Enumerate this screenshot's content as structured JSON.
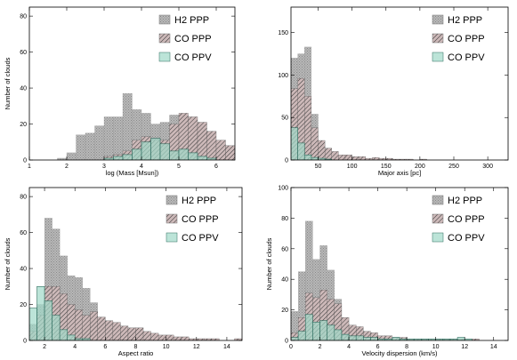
{
  "chart_data": [
    {
      "type": "bar",
      "panel": "top-left",
      "xlabel": "log (Mass [Msun])",
      "ylabel": "Number of clouds",
      "xlim": [
        1,
        6.5
      ],
      "ylim": [
        0,
        85
      ],
      "xticks": [
        1,
        2,
        3,
        4,
        5,
        6
      ],
      "yticks": [
        0,
        20,
        40,
        60,
        80
      ],
      "legend_position": "top-right",
      "bin_start": 1.75,
      "bin_width": 0.25,
      "series": [
        {
          "name": "H2 PPP",
          "color": "#b4b4b4",
          "pattern": "dots",
          "values": [
            1,
            4,
            14,
            15,
            19,
            24,
            24,
            37,
            28,
            26,
            20,
            21,
            25,
            25,
            18,
            14,
            6,
            2
          ]
        },
        {
          "name": "CO PPP",
          "color": "#d8c6c6",
          "pattern": "hatch",
          "values": [
            0,
            0,
            0,
            0,
            0,
            2,
            3,
            5,
            11,
            13,
            11,
            11,
            20,
            26,
            24,
            21,
            16,
            11,
            8,
            6,
            5,
            2
          ]
        },
        {
          "name": "CO PPV",
          "color": "#9fd8c8",
          "pattern": "none",
          "values": [
            0,
            0,
            0,
            0,
            0,
            1,
            2,
            3,
            6,
            10,
            12,
            9,
            5,
            6,
            4,
            2,
            1
          ]
        }
      ]
    },
    {
      "type": "bar",
      "panel": "top-right",
      "xlabel": "Major axis [pc]",
      "ylabel": "",
      "xlim": [
        10,
        330
      ],
      "ylim": [
        0,
        180
      ],
      "xticks": [
        50,
        100,
        150,
        200,
        250,
        300
      ],
      "yticks": [
        0,
        50,
        100,
        150
      ],
      "legend_position": "top-right",
      "bin_start": 10,
      "bin_width": 10,
      "series": [
        {
          "name": "H2 PPP",
          "color": "#b4b4b4",
          "pattern": "dots",
          "values": [
            120,
            125,
            133,
            54,
            17,
            4,
            2,
            1,
            1,
            0,
            0,
            1,
            0,
            1
          ]
        },
        {
          "name": "CO PPP",
          "color": "#d8c6c6",
          "pattern": "hatch",
          "values": [
            84,
            96,
            75,
            38,
            23,
            14,
            10,
            6,
            6,
            4,
            4,
            2,
            3,
            2,
            2,
            1,
            1,
            1,
            0,
            1
          ]
        },
        {
          "name": "CO PPV",
          "color": "#9fd8c8",
          "pattern": "none",
          "values": [
            38,
            20,
            6,
            3,
            2,
            1
          ]
        }
      ]
    },
    {
      "type": "bar",
      "panel": "bottom-left",
      "xlabel": "Aspect ratio",
      "ylabel": "Number of clouds",
      "xlim": [
        1,
        15
      ],
      "ylim": [
        0,
        85
      ],
      "xticks": [
        2,
        4,
        6,
        8,
        10,
        12,
        14
      ],
      "yticks": [
        0,
        20,
        40,
        60,
        80
      ],
      "legend_position": "top-right",
      "bin_start": 1,
      "bin_width": 0.5,
      "series": [
        {
          "name": "H2 PPP",
          "color": "#b4b4b4",
          "pattern": "dots",
          "values": [
            9,
            20,
            68,
            62,
            47,
            36,
            35,
            29,
            21,
            12,
            7,
            5,
            3,
            2,
            1,
            1,
            0,
            0,
            0,
            1
          ]
        },
        {
          "name": "CO PPP",
          "color": "#d8c6c6",
          "pattern": "hatch",
          "values": [
            5,
            14,
            30,
            30,
            26,
            20,
            17,
            14,
            16,
            13,
            11,
            10,
            8,
            7,
            7,
            5,
            4,
            3,
            3,
            2,
            2,
            1,
            1,
            1,
            1,
            0,
            0,
            1
          ]
        },
        {
          "name": "CO PPV",
          "color": "#9fd8c8",
          "pattern": "none",
          "values": [
            18,
            30,
            22,
            14,
            6,
            3,
            1,
            1
          ]
        }
      ]
    },
    {
      "type": "bar",
      "panel": "bottom-right",
      "xlabel": "Velocity dispersion (km/s)",
      "ylabel": "Number of clouds",
      "xlim": [
        0,
        15
      ],
      "ylim": [
        0,
        100
      ],
      "xticks": [
        0,
        2,
        4,
        6,
        8,
        10,
        12,
        14
      ],
      "yticks": [
        0,
        20,
        40,
        60,
        80,
        100
      ],
      "legend_position": "top-right",
      "bin_start": 0,
      "bin_width": 0.5,
      "series": [
        {
          "name": "H2 PPP",
          "color": "#b4b4b4",
          "pattern": "dots",
          "values": [
            19,
            45,
            78,
            53,
            62,
            46,
            27,
            11,
            4,
            2,
            1,
            1
          ]
        },
        {
          "name": "CO PPP",
          "color": "#d8c6c6",
          "pattern": "hatch",
          "values": [
            5,
            15,
            31,
            28,
            33,
            27,
            24,
            15,
            10,
            9,
            6,
            5,
            3,
            3,
            2,
            2,
            1,
            1,
            1,
            1,
            1,
            1,
            1,
            1,
            0,
            1
          ]
        },
        {
          "name": "CO PPV",
          "color": "#9fd8c8",
          "pattern": "none",
          "values": [
            2,
            6,
            17,
            12,
            13,
            10,
            7,
            4,
            3,
            3,
            2,
            2,
            1,
            1,
            2,
            1,
            1,
            1,
            1,
            1,
            1,
            1,
            1,
            2,
            1
          ]
        }
      ]
    }
  ]
}
